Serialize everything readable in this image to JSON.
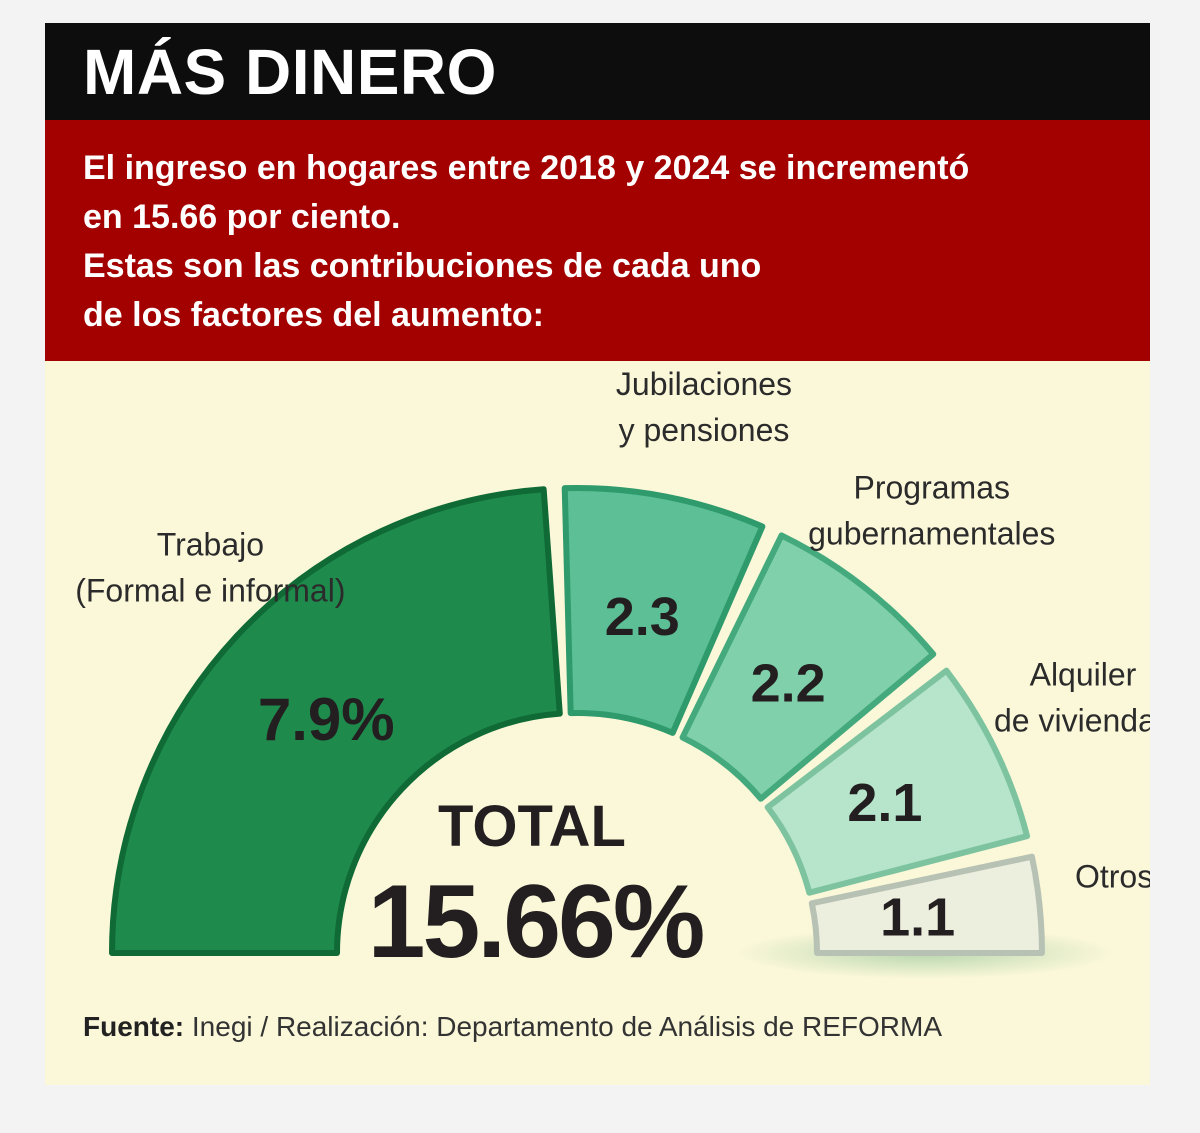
{
  "header": {
    "title": "MÁS DINERO",
    "subtitle_lines": [
      "El ingreso en hogares entre 2018 y 2024 se incrementó",
      "en 15.66 por ciento.",
      "Estas son las contribuciones de cada uno",
      "de los factores del aumento:"
    ]
  },
  "chart_data": {
    "type": "pie",
    "subtype": "semicircle-donut",
    "unit": "%",
    "categories": [
      [
        "Trabajo",
        "(Formal e informal)"
      ],
      [
        "Jubilaciones",
        "y pensiones"
      ],
      [
        "Programas",
        "gubernamentales"
      ],
      [
        "Alquiler",
        "de viviendas"
      ],
      [
        "Otros"
      ]
    ],
    "values": [
      7.9,
      2.3,
      2.2,
      2.1,
      1.1
    ],
    "value_labels": [
      "7.9%",
      "2.3",
      "2.2",
      "2.1",
      "1.1"
    ],
    "total_label": "TOTAL",
    "total_value": "15.66%",
    "colors": [
      "#1e8a4c",
      "#5cbf96",
      "#7fd0ab",
      "#b6e5cc",
      "#eceede"
    ]
  },
  "footer": {
    "source_label": "Fuente:",
    "source_text": "Inegi / Realización: Departamento de Análisis de REFORMA"
  }
}
